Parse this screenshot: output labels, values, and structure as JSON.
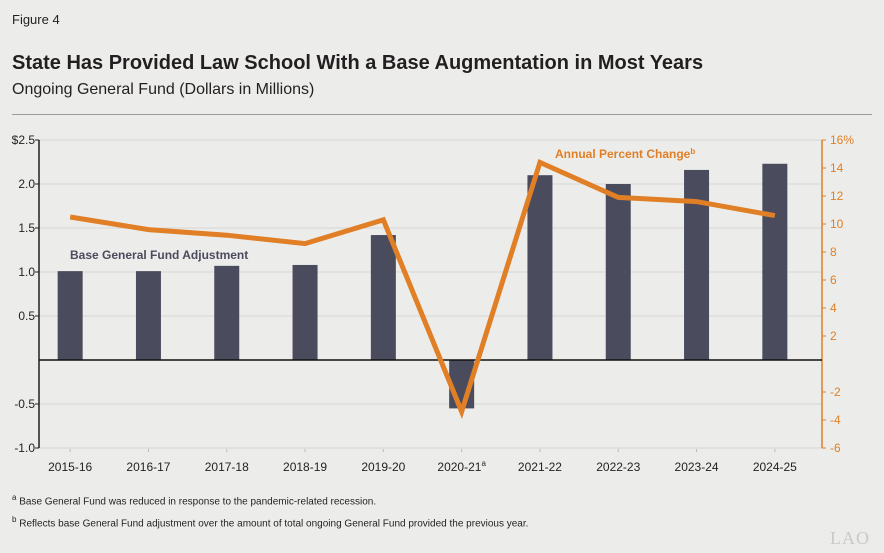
{
  "figure_label": "Figure 4",
  "title": "State Has Provided Law School With a Base Augmentation in Most Years",
  "subtitle": "Ongoing General Fund (Dollars in Millions)",
  "footnotes": [
    {
      "mark": "a",
      "text": "Base General Fund was reduced in response to the pandemic-related recession."
    },
    {
      "mark": "b",
      "text": "Reflects base General Fund adjustment over the amount of total ongoing General Fund provided the previous year."
    }
  ],
  "logo": "LAO",
  "colors": {
    "bar": "#4b4b5e",
    "line": "#e07f26",
    "grid": "#d6d6d6"
  },
  "chart_data": {
    "type": "bar+line",
    "categories": [
      "2015-16",
      "2016-17",
      "2017-18",
      "2018-19",
      "2019-20",
      "2020-21",
      "2021-22",
      "2022-23",
      "2023-24",
      "2024-25"
    ],
    "category_superscripts": {
      "2020-21": "a"
    },
    "series": [
      {
        "name": "Base General Fund Adjustment",
        "type": "bar",
        "axis": "left",
        "values": [
          1.01,
          1.01,
          1.07,
          1.08,
          1.42,
          -0.55,
          2.1,
          2.0,
          2.16,
          2.23
        ]
      },
      {
        "name": "Annual Percent Change",
        "name_superscript": "b",
        "type": "line",
        "axis": "right",
        "values": [
          10.5,
          9.6,
          9.2,
          8.6,
          10.3,
          -3.4,
          14.4,
          11.9,
          11.6,
          10.6
        ]
      }
    ],
    "left_axis": {
      "ylim": [
        -1.0,
        2.5
      ],
      "ticks": [
        {
          "v": 2.5,
          "label": "$2.5"
        },
        {
          "v": 2.0,
          "label": "2.0"
        },
        {
          "v": 1.5,
          "label": "1.5"
        },
        {
          "v": 1.0,
          "label": "1.0"
        },
        {
          "v": 0.5,
          "label": "0.5"
        },
        {
          "v": -0.5,
          "label": "-0.5"
        },
        {
          "v": -1.0,
          "label": "-1.0"
        }
      ]
    },
    "right_axis": {
      "ylim": [
        -6,
        16
      ],
      "ticks": [
        {
          "v": 16,
          "label": "16%"
        },
        {
          "v": 14,
          "label": "14"
        },
        {
          "v": 12,
          "label": "12"
        },
        {
          "v": 10,
          "label": "10"
        },
        {
          "v": 8,
          "label": "8"
        },
        {
          "v": 6,
          "label": "6"
        },
        {
          "v": 4,
          "label": "4"
        },
        {
          "v": 2,
          "label": "2"
        },
        {
          "v": -2,
          "label": "-2"
        },
        {
          "v": -4,
          "label": "-4"
        },
        {
          "v": -6,
          "label": "-6"
        }
      ]
    },
    "grid": true
  }
}
